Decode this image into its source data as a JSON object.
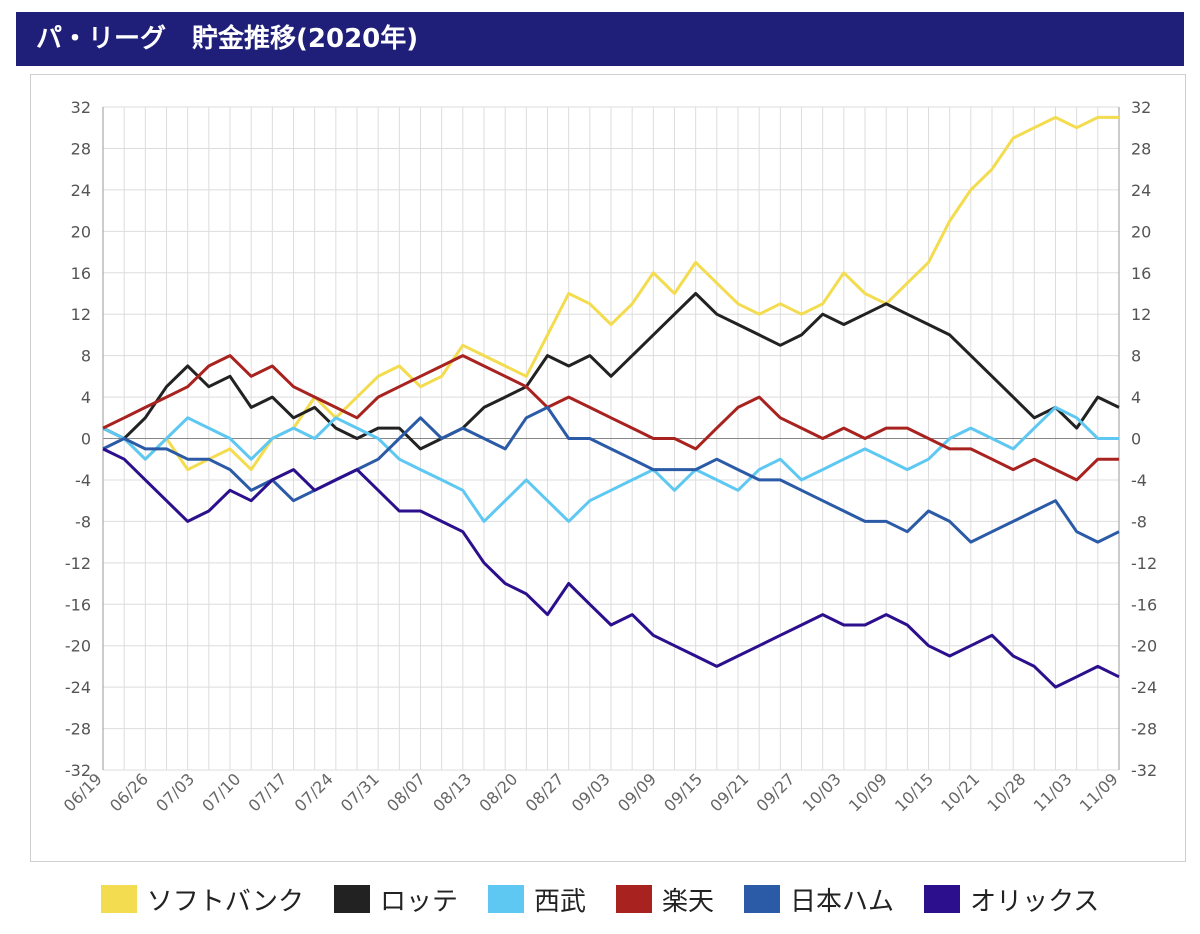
{
  "title": "パ・リーグ　貯金推移(2020年)",
  "colors": {
    "ソフトバンク": "#f3dc4f",
    "ロッテ": "#222222",
    "西武": "#5ec8f2",
    "楽天": "#a8231f",
    "日本ハム": "#2b5aa6",
    "オリックス": "#2b0f8c"
  },
  "chart_data": {
    "type": "line",
    "title": "パ・リーグ　貯金推移(2020年)",
    "xlabel": "",
    "ylabel": "",
    "ylim": [
      -32,
      32
    ],
    "yticks": [
      32,
      28,
      24,
      20,
      16,
      12,
      8,
      4,
      0,
      -4,
      -8,
      -12,
      -16,
      -20,
      -24,
      -28,
      -32
    ],
    "x_tick_labels": [
      "06/19",
      "06/26",
      "07/03",
      "07/10",
      "07/17",
      "07/24",
      "07/31",
      "08/07",
      "08/13",
      "08/20",
      "08/27",
      "09/03",
      "09/09",
      "09/15",
      "09/21",
      "09/27",
      "10/03",
      "10/09",
      "10/15",
      "10/21",
      "10/28",
      "11/03",
      "11/09"
    ],
    "grid": true,
    "dual_y_axis": true,
    "legend_position": "bottom",
    "series": [
      {
        "name": "ソフトバンク",
        "values": [
          1,
          0,
          -2,
          0,
          -3,
          -2,
          -1,
          -3,
          0,
          1,
          4,
          2,
          4,
          6,
          7,
          5,
          6,
          9,
          8,
          7,
          6,
          10,
          14,
          13,
          11,
          13,
          16,
          14,
          17,
          15,
          13,
          12,
          13,
          12,
          13,
          16,
          14,
          13,
          15,
          17,
          21,
          24,
          26,
          29,
          30,
          31,
          30,
          31,
          31
        ]
      },
      {
        "name": "ロッテ",
        "values": [
          1,
          0,
          2,
          5,
          7,
          5,
          6,
          3,
          4,
          2,
          3,
          1,
          0,
          1,
          1,
          -1,
          0,
          1,
          3,
          4,
          5,
          8,
          7,
          8,
          6,
          8,
          10,
          12,
          14,
          12,
          11,
          10,
          9,
          10,
          12,
          11,
          12,
          13,
          12,
          11,
          10,
          8,
          6,
          4,
          2,
          3,
          1,
          4,
          3
        ]
      },
      {
        "name": "西武",
        "values": [
          1,
          0,
          -2,
          0,
          2,
          1,
          0,
          -2,
          0,
          1,
          0,
          2,
          1,
          0,
          -2,
          -3,
          -4,
          -5,
          -8,
          -6,
          -4,
          -6,
          -8,
          -6,
          -5,
          -4,
          -3,
          -5,
          -3,
          -4,
          -5,
          -3,
          -2,
          -4,
          -3,
          -2,
          -1,
          -2,
          -3,
          -2,
          0,
          1,
          0,
          -1,
          1,
          3,
          2,
          0,
          0
        ]
      },
      {
        "name": "楽天",
        "values": [
          1,
          2,
          3,
          4,
          5,
          7,
          8,
          6,
          7,
          5,
          4,
          3,
          2,
          4,
          5,
          6,
          7,
          8,
          7,
          6,
          5,
          3,
          4,
          3,
          2,
          1,
          0,
          0,
          -1,
          1,
          3,
          4,
          2,
          1,
          0,
          1,
          0,
          1,
          1,
          0,
          -1,
          -1,
          -2,
          -3,
          -2,
          -3,
          -4,
          -2,
          -2
        ]
      },
      {
        "name": "日本ハム",
        "values": [
          -1,
          0,
          -1,
          -1,
          -2,
          -2,
          -3,
          -5,
          -4,
          -6,
          -5,
          -4,
          -3,
          -2,
          0,
          2,
          0,
          1,
          0,
          -1,
          2,
          3,
          0,
          0,
          -1,
          -2,
          -3,
          -3,
          -3,
          -2,
          -3,
          -4,
          -4,
          -5,
          -6,
          -7,
          -8,
          -8,
          -9,
          -7,
          -8,
          -10,
          -9,
          -8,
          -7,
          -6,
          -9,
          -10,
          -9
        ]
      },
      {
        "name": "オリックス",
        "values": [
          -1,
          -2,
          -4,
          -6,
          -8,
          -7,
          -5,
          -6,
          -4,
          -3,
          -5,
          -4,
          -3,
          -5,
          -7,
          -7,
          -8,
          -9,
          -12,
          -14,
          -15,
          -17,
          -14,
          -16,
          -18,
          -17,
          -19,
          -20,
          -21,
          -22,
          -21,
          -20,
          -19,
          -18,
          -17,
          -18,
          -18,
          -17,
          -18,
          -20,
          -21,
          -20,
          -19,
          -21,
          -22,
          -24,
          -23,
          -22,
          -23
        ]
      }
    ]
  }
}
